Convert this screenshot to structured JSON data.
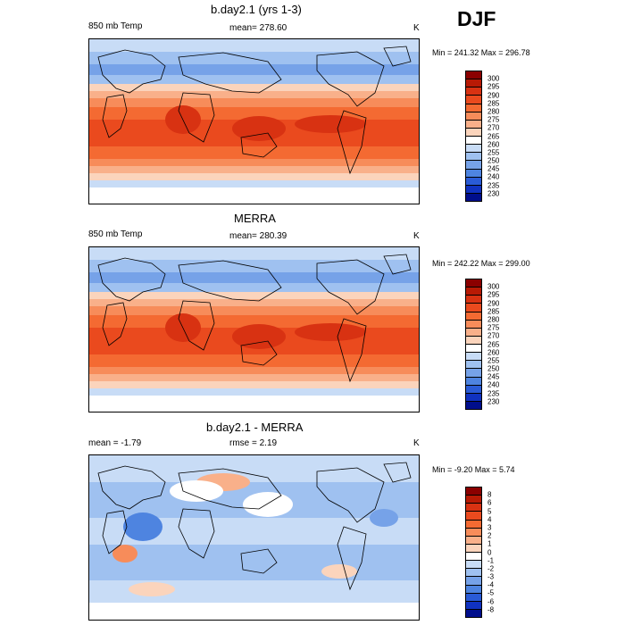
{
  "season": "DJF",
  "panels": [
    {
      "title": "b.day2.1 (yrs 1-3)",
      "left": "850 mb Temp",
      "center": "mean= 278.60",
      "right": "K",
      "minmax": "Min = 241.32 Max = 296.78",
      "kind": "temp"
    },
    {
      "title": "MERRA",
      "left": "850 mb Temp",
      "center": "mean= 280.39",
      "right": "K",
      "minmax": "Min = 242.22 Max = 299.00",
      "kind": "temp"
    },
    {
      "title": "b.day2.1 - MERRA",
      "left": "mean =  -1.79",
      "center": "rmse =   2.19",
      "right": "K",
      "minmax": "Min =  -9.20 Max =   5.74",
      "kind": "diff"
    }
  ],
  "colorbars": {
    "temp": {
      "labels": [
        "300",
        "295",
        "290",
        "285",
        "280",
        "275",
        "270",
        "265",
        "260",
        "255",
        "250",
        "245",
        "240",
        "235",
        "230"
      ],
      "colors": [
        "#8b0000",
        "#b81a05",
        "#d83212",
        "#ea4a1e",
        "#f46a32",
        "#f78c5a",
        "#f9b08a",
        "#fbd4bc",
        "#ffffff",
        "#c8dcf6",
        "#9fc1f0",
        "#76a2e8",
        "#4e84e0",
        "#2a5bd6",
        "#1032c0",
        "#000e8c"
      ]
    },
    "diff": {
      "labels": [
        "8",
        "6",
        "5",
        "4",
        "3",
        "2",
        "1",
        "0",
        "-1",
        "-2",
        "-3",
        "-4",
        "-5",
        "-6",
        "-8"
      ],
      "colors": [
        "#8b0000",
        "#b81a05",
        "#d83212",
        "#ea4a1e",
        "#f46a32",
        "#f78c5a",
        "#f9b08a",
        "#fbd4bc",
        "#ffffff",
        "#c8dcf6",
        "#9fc1f0",
        "#76a2e8",
        "#4e84e0",
        "#2a5bd6",
        "#1032c0",
        "#000e8c"
      ]
    }
  }
}
